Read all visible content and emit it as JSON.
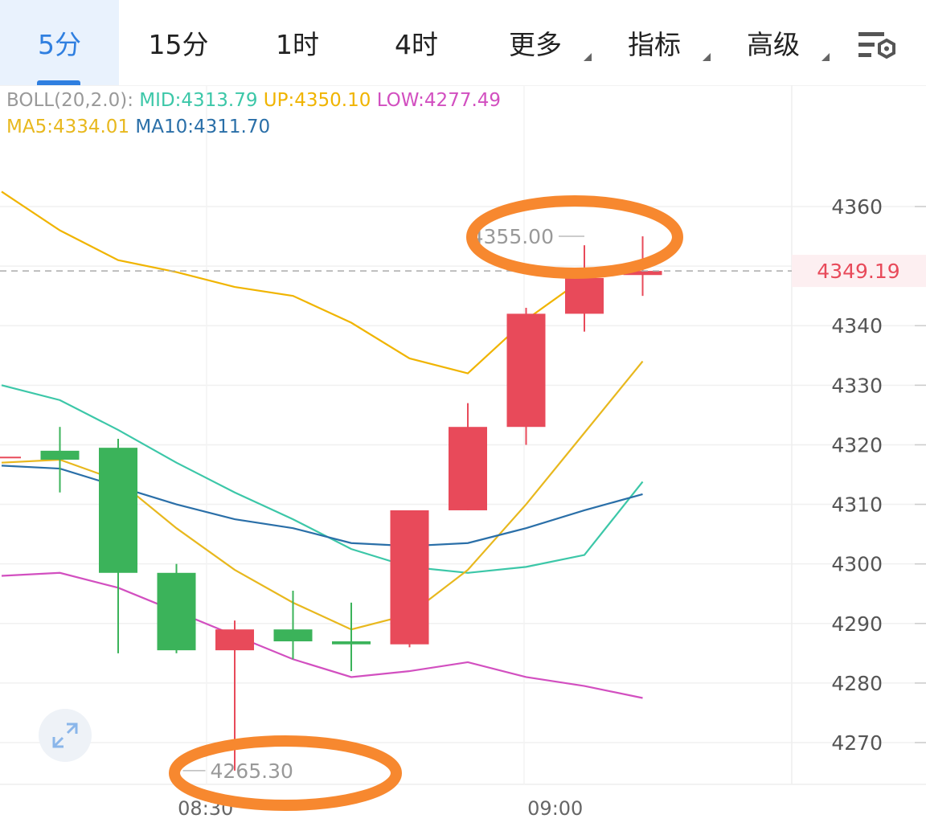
{
  "tabs": [
    {
      "label": "5分",
      "active": true,
      "dropdown": false
    },
    {
      "label": "15分",
      "active": false,
      "dropdown": false
    },
    {
      "label": "1时",
      "active": false,
      "dropdown": false
    },
    {
      "label": "4时",
      "active": false,
      "dropdown": false
    },
    {
      "label": "更多",
      "active": false,
      "dropdown": true
    },
    {
      "label": "指标",
      "active": false,
      "dropdown": true
    },
    {
      "label": "高级",
      "active": false,
      "dropdown": true
    }
  ],
  "settings_icon": "chart-settings-icon",
  "legend": {
    "boll_prefix": "BOLL(20,2.0):",
    "mid": "MID:4313.79",
    "up": "UP:4350.10",
    "low": "LOW:4277.49",
    "ma5": "MA5:4334.01",
    "ma10": "MA10:4311.70"
  },
  "colors": {
    "up_candle": "#e84a5a",
    "down_candle": "#3bb35a",
    "mid": "#3cc7a8",
    "up_band": "#f0b400",
    "low_band": "#d24fc0",
    "ma5": "#e8b81e",
    "ma10": "#2a6fa8",
    "highlight": "#f7882f"
  },
  "chart_data": {
    "type": "candlestick",
    "y_ticks": [
      4360,
      4340,
      4330,
      4320,
      4310,
      4300,
      4290,
      4280,
      4270
    ],
    "ylim": [
      4263,
      4376
    ],
    "x_labels": [
      {
        "label": "08:30",
        "index": 3.5
      },
      {
        "label": "09:00",
        "index": 9.5
      }
    ],
    "current_price": "4349.19",
    "current_price_value": 4349.19,
    "max_marker": {
      "label": "4355.00",
      "value": 4355.0,
      "index": 10
    },
    "min_marker": {
      "label": "4265.30",
      "value": 4265.3,
      "index": 3
    },
    "candles": [
      {
        "o": 4318,
        "c": 4318,
        "h": 4318,
        "l": 4318
      },
      {
        "o": 4319,
        "c": 4317.5,
        "h": 4323,
        "l": 4312
      },
      {
        "o": 4319.5,
        "c": 4298.5,
        "h": 4321,
        "l": 4285
      },
      {
        "o": 4298.5,
        "c": 4285.5,
        "h": 4300,
        "l": 4285
      },
      {
        "o": 4285.5,
        "c": 4289,
        "h": 4290.5,
        "l": 4265.3
      },
      {
        "o": 4289,
        "c": 4287,
        "h": 4295.5,
        "l": 4284
      },
      {
        "o": 4287,
        "c": 4286.5,
        "h": 4293.5,
        "l": 4282
      },
      {
        "o": 4286.5,
        "c": 4309,
        "h": 4309,
        "l": 4286
      },
      {
        "o": 4309,
        "c": 4323,
        "h": 4327,
        "l": 4309
      },
      {
        "o": 4323,
        "c": 4342,
        "h": 4343,
        "l": 4320
      },
      {
        "o": 4342,
        "c": 4348,
        "h": 4353.5,
        "l": 4339
      },
      {
        "o": 4348.5,
        "c": 4349.19,
        "h": 4355,
        "l": 4345
      }
    ],
    "series": [
      {
        "name": "UP",
        "points": [
          [
            0,
            4362.5
          ],
          [
            1,
            4356
          ],
          [
            2,
            4351
          ],
          [
            3,
            4349
          ],
          [
            4,
            4346.5
          ],
          [
            5,
            4345
          ],
          [
            6,
            4340.5
          ],
          [
            7,
            4334.5
          ],
          [
            8,
            4332
          ],
          [
            9,
            4341
          ],
          [
            10,
            4348
          ],
          [
            11,
            4350.1
          ]
        ]
      },
      {
        "name": "MID",
        "points": [
          [
            0,
            4330
          ],
          [
            1,
            4327.5
          ],
          [
            2,
            4322.5
          ],
          [
            3,
            4317
          ],
          [
            4,
            4312
          ],
          [
            5,
            4307.5
          ],
          [
            6,
            4302.5
          ],
          [
            7,
            4299.5
          ],
          [
            8,
            4298.5
          ],
          [
            9,
            4299.5
          ],
          [
            10,
            4301.5
          ],
          [
            11,
            4313.79
          ]
        ]
      },
      {
        "name": "LOW",
        "points": [
          [
            0,
            4298
          ],
          [
            1,
            4298.5
          ],
          [
            2,
            4296
          ],
          [
            3,
            4292
          ],
          [
            4,
            4288
          ],
          [
            5,
            4284
          ],
          [
            6,
            4281
          ],
          [
            7,
            4282
          ],
          [
            8,
            4283.5
          ],
          [
            9,
            4281
          ],
          [
            10,
            4279.5
          ],
          [
            11,
            4277.49
          ]
        ]
      },
      {
        "name": "MA5",
        "points": [
          [
            0,
            4317
          ],
          [
            1,
            4317.5
          ],
          [
            2,
            4314
          ],
          [
            3,
            4306
          ],
          [
            4,
            4299
          ],
          [
            5,
            4293.5
          ],
          [
            6,
            4289
          ],
          [
            7,
            4291.5
          ],
          [
            8,
            4299
          ],
          [
            9,
            4310
          ],
          [
            10,
            4322
          ],
          [
            11,
            4334.01
          ]
        ]
      },
      {
        "name": "MA10",
        "points": [
          [
            0,
            4316.5
          ],
          [
            1,
            4316
          ],
          [
            2,
            4313
          ],
          [
            3,
            4310
          ],
          [
            4,
            4307.5
          ],
          [
            5,
            4306
          ],
          [
            6,
            4303.5
          ],
          [
            7,
            4303
          ],
          [
            8,
            4303.5
          ],
          [
            9,
            4306
          ],
          [
            10,
            4309
          ],
          [
            11,
            4311.7
          ]
        ]
      }
    ]
  }
}
